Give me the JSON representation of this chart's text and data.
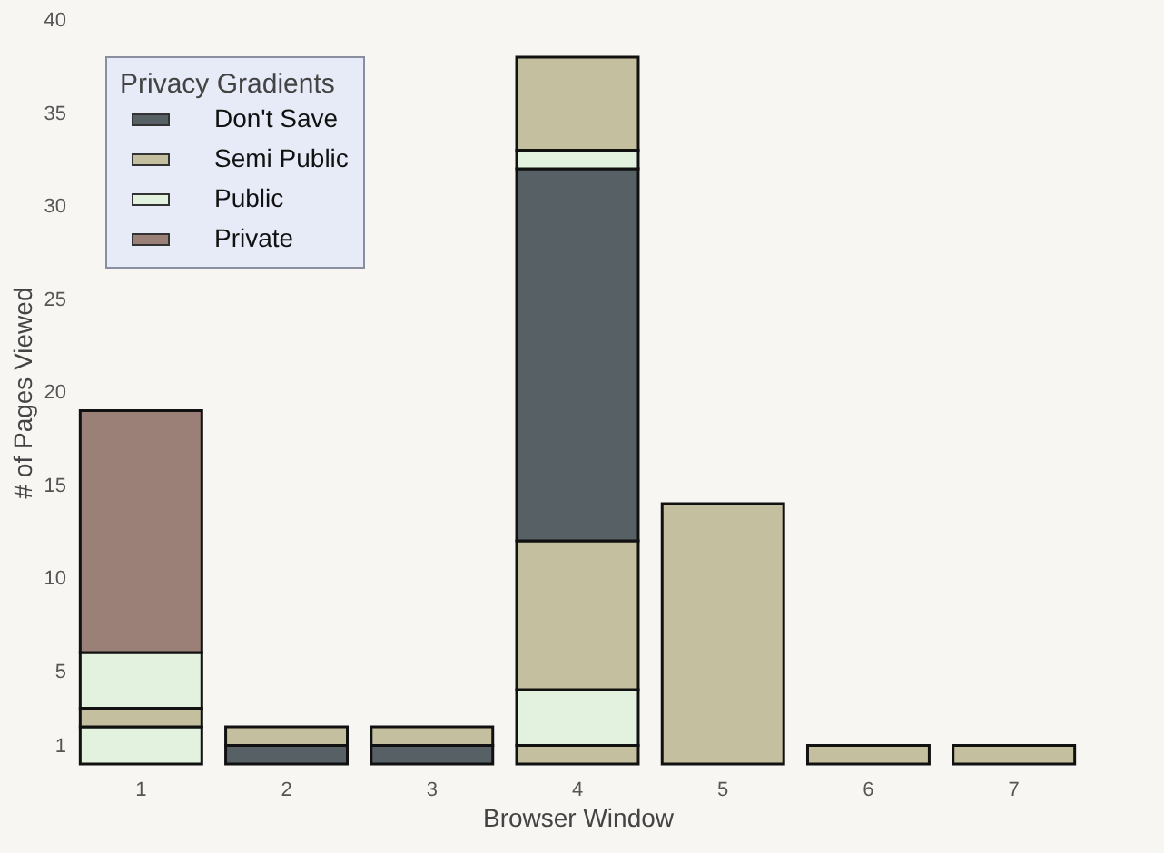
{
  "chart_data": {
    "type": "bar",
    "stacked": true,
    "xlabel": "Browser Window",
    "ylabel": "# of Pages Viewed",
    "legend_title": "Privacy Gradients",
    "legend": "top left",
    "categories": [
      "1",
      "2",
      "3",
      "4",
      "5",
      "6",
      "7"
    ],
    "ylim": [
      0,
      40
    ],
    "yticks": [
      1,
      5,
      10,
      15,
      20,
      25,
      30,
      35,
      40
    ],
    "series": [
      {
        "name": "Don't Save",
        "color": "#576065",
        "values": [
          null,
          1,
          1,
          null,
          null,
          null,
          null
        ]
      },
      {
        "name": "Semi Public",
        "color": "#c4bf9f",
        "values": [
          null,
          1,
          1,
          1,
          14,
          1,
          1
        ]
      },
      {
        "name": "Public",
        "color": "#e2f2df",
        "values": [
          2,
          null,
          null,
          3,
          null,
          null,
          null
        ]
      },
      {
        "color": "#c4bf9f",
        "values": [
          1,
          null,
          null,
          8,
          null,
          null,
          null
        ]
      },
      {
        "color": "#e2f2df",
        "values": [
          3,
          null,
          null,
          null,
          null,
          null,
          null
        ]
      },
      {
        "name": "Private",
        "color": "#9b8078",
        "values": [
          13,
          null,
          null,
          null,
          null,
          null,
          null
        ]
      },
      {
        "color": "#576065",
        "values": [
          null,
          null,
          null,
          20,
          null,
          null,
          null
        ]
      },
      {
        "color": "#e2f2df",
        "values": [
          null,
          null,
          null,
          1,
          null,
          null,
          null
        ]
      },
      {
        "color": "#c4bf9f",
        "values": [
          null,
          null,
          null,
          5,
          null,
          null,
          null
        ]
      }
    ]
  }
}
